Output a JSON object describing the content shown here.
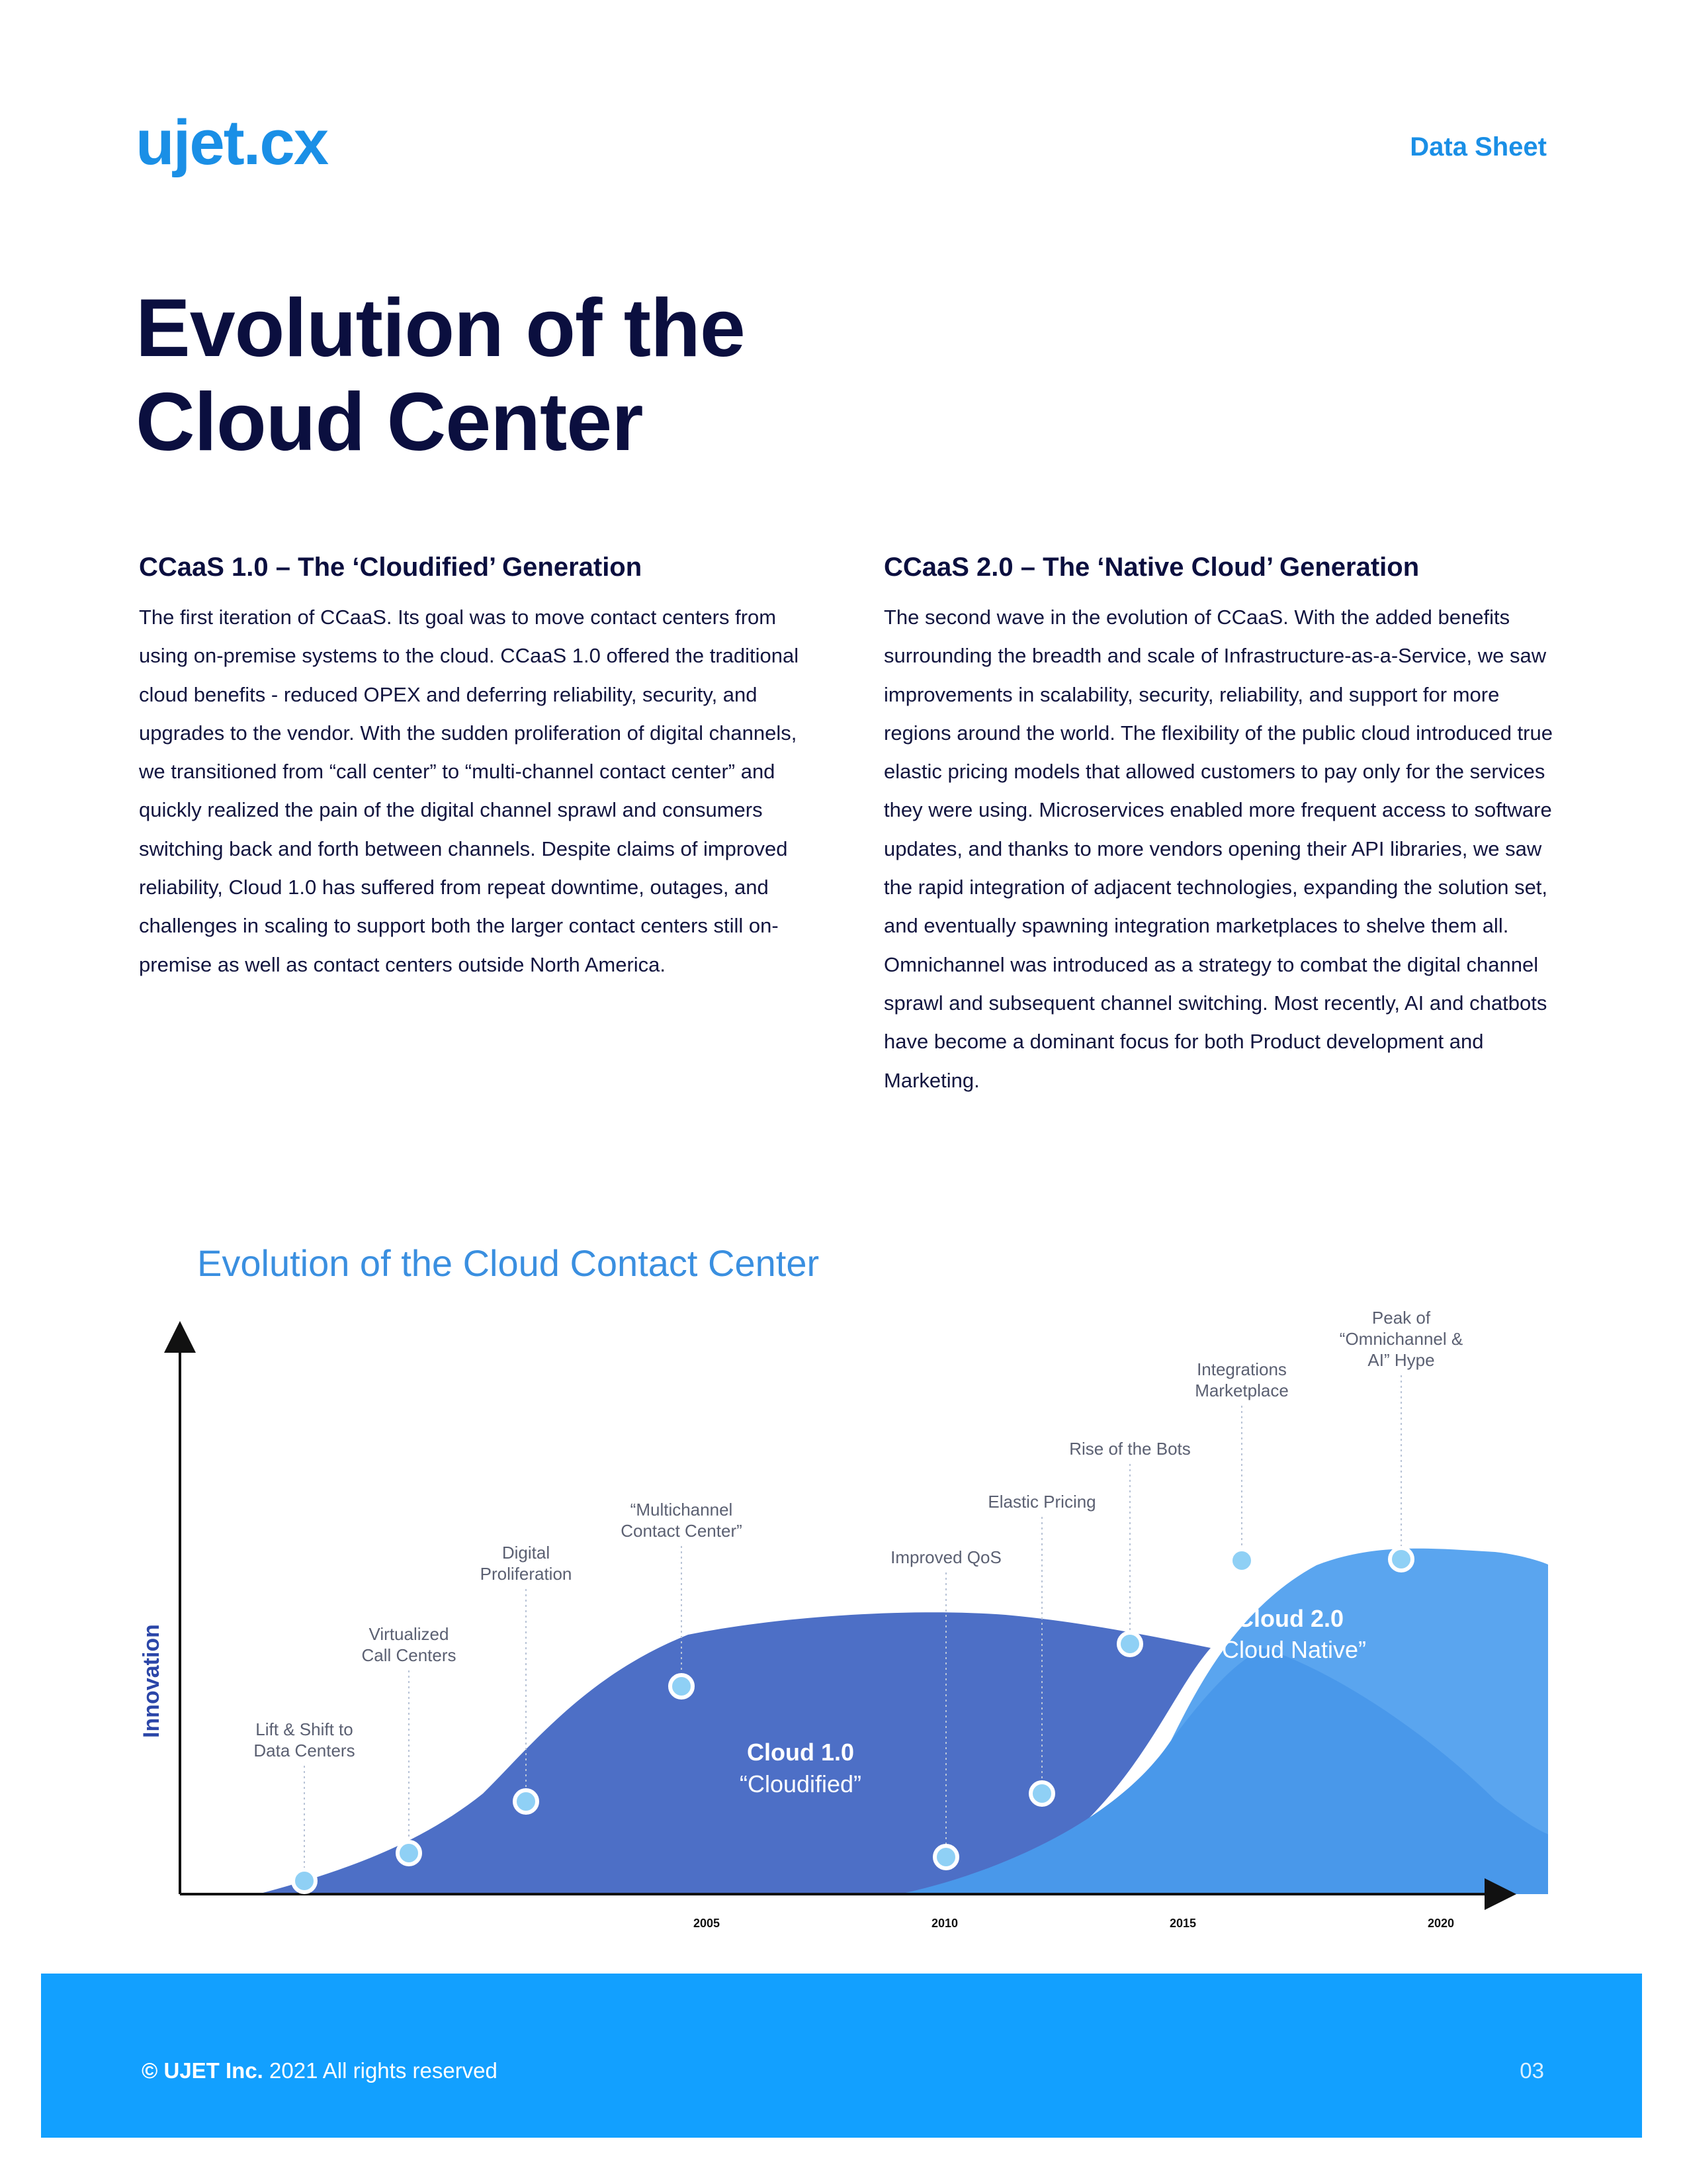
{
  "header": {
    "logo_text": "ujet.cx",
    "doc_type": "Data Sheet"
  },
  "title": {
    "line1": "Evolution of the",
    "line2": "Cloud Center"
  },
  "sections": [
    {
      "heading": "CCaaS 1.0 – The ‘Cloudified’ Generation",
      "body": "The first iteration of CCaaS. Its goal was to move contact centers from using on-premise systems to the cloud. CCaaS 1.0 offered the traditional cloud benefits - reduced OPEX and deferring reliability, security, and upgrades to the vendor. With the sudden proliferation of digital channels, we transitioned from “call center” to “multi-channel contact center” and quickly realized the pain of the digital channel sprawl and consumers switching back and forth between channels.  Despite claims of improved reliability, Cloud 1.0 has suffered from repeat downtime, outages, and challenges in scaling to support both the larger contact centers still on-premise as well as contact centers outside North America."
    },
    {
      "heading": "CCaaS 2.0 – The ‘Native Cloud’ Generation",
      "body": "The second wave in the evolution of CCaaS. With the added benefits surrounding the breadth and scale of Infrastructure-as-a-Service, we saw improvements in scalability, security, reliability, and support for more regions around the world.  The flexibility of the public cloud introduced true elastic pricing models that allowed customers to pay only for the services they were using. Microservices enabled more frequent access to software updates, and thanks to more vendors opening their API libraries, we saw the rapid integration of adjacent technologies, expanding the solution set, and eventually spawning integration marketplaces to shelve them all. Omnichannel was introduced as a strategy to combat the digital channel sprawl and subsequent channel switching. Most recently, AI and chatbots have become a dominant focus for both Product development and Marketing."
    }
  ],
  "chart_data": {
    "type": "area",
    "title": "Evolution of the Cloud Contact Center",
    "ylabel": "Innovation",
    "xlabel": "",
    "x_ticks": [
      "2005",
      "2010",
      "2015",
      "2020"
    ],
    "series": [
      {
        "name": "Cloud 1.0",
        "subtitle": "“Cloudified”",
        "color": "#4a6fcc"
      },
      {
        "name": "Cloud 2.0",
        "subtitle": "“Cloud Native”",
        "color": "#5fa6ee"
      }
    ],
    "milestones": [
      {
        "lines": [
          "Lift & Shift to",
          "Data Centers"
        ]
      },
      {
        "lines": [
          "Virtualized",
          "Call Centers"
        ]
      },
      {
        "lines": [
          "Digital",
          "Proliferation"
        ]
      },
      {
        "lines": [
          "“Multichannel",
          "Contact Center”"
        ]
      },
      {
        "lines": [
          "Improved QoS"
        ]
      },
      {
        "lines": [
          "Elastic Pricing"
        ]
      },
      {
        "lines": [
          "Rise of the Bots"
        ]
      },
      {
        "lines": [
          "Integrations",
          "Marketplace"
        ]
      },
      {
        "lines": [
          "Peak of",
          "“Omnichannel &",
          "AI” Hype"
        ]
      }
    ]
  },
  "footer": {
    "company": "© UJET Inc.",
    "rights": " 2021 All rights reserved",
    "page": "03"
  }
}
